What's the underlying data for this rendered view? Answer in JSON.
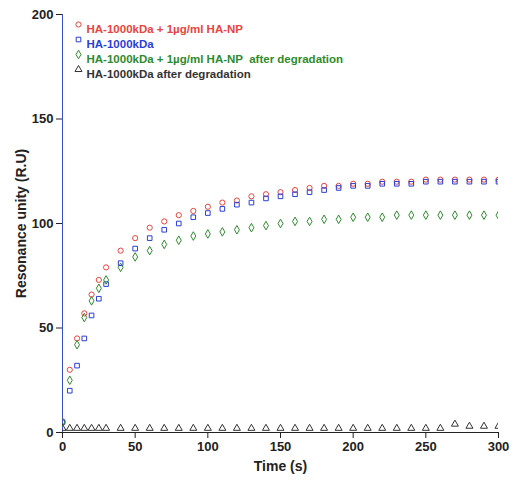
{
  "chart_data": {
    "type": "scatter",
    "x_label": "Time (s)",
    "y_label": "Resonance unity (R.U)",
    "x": [
      0,
      5,
      10,
      15,
      20,
      25,
      30,
      40,
      50,
      60,
      70,
      80,
      90,
      100,
      110,
      120,
      130,
      140,
      150,
      160,
      170,
      180,
      190,
      200,
      210,
      220,
      230,
      240,
      250,
      260,
      270,
      280,
      290,
      300
    ],
    "series": [
      {
        "name": "HA-1000kDa + 1µg/ml HA-NP",
        "color": "#e8453c",
        "marker": "circle",
        "values": [
          5,
          30,
          45,
          57,
          66,
          73,
          79,
          87,
          93,
          98,
          101,
          104,
          106,
          108,
          110,
          111,
          113,
          114,
          115,
          116,
          117,
          118,
          118,
          119,
          119,
          120,
          120,
          120,
          121,
          121,
          121,
          121,
          121,
          121
        ]
      },
      {
        "name": "HA-1000kDa",
        "color": "#2b3fd4",
        "marker": "square",
        "values": [
          5,
          20,
          32,
          45,
          56,
          64,
          71,
          81,
          88,
          93,
          97,
          100,
          103,
          105,
          107,
          109,
          110,
          112,
          113,
          114,
          115,
          116,
          117,
          118,
          118,
          119,
          119,
          119,
          120,
          120,
          120,
          120,
          120,
          120
        ]
      },
      {
        "name": "HA-1000kDa + 1µg/ml HA-NP  after degradation",
        "color": "#2e8b2e",
        "marker": "diamond",
        "values": [
          5,
          25,
          42,
          55,
          63,
          69,
          73,
          79,
          84,
          87,
          90,
          92,
          94,
          95,
          96,
          97,
          98,
          99,
          100,
          101,
          101,
          102,
          102,
          103,
          103,
          103,
          104,
          104,
          104,
          104,
          104,
          104,
          104,
          104
        ]
      },
      {
        "name": "HA-1000kDa after degradation",
        "color": "#333333",
        "marker": "triangle",
        "values": [
          2,
          2,
          2,
          2,
          2,
          2,
          2,
          2,
          2,
          2,
          2,
          2,
          2,
          2,
          2,
          2,
          2,
          2,
          2,
          2,
          2,
          2,
          2,
          2,
          2,
          2,
          2,
          2,
          2,
          2,
          4,
          3,
          3,
          3
        ]
      }
    ],
    "xlim": [
      0,
      300
    ],
    "xticks": [
      0,
      50,
      100,
      150,
      200,
      250,
      300
    ],
    "ylim": [
      0,
      200
    ],
    "yticks": [
      0,
      50,
      100,
      150,
      200
    ],
    "legend": "top-left",
    "grid": false
  }
}
